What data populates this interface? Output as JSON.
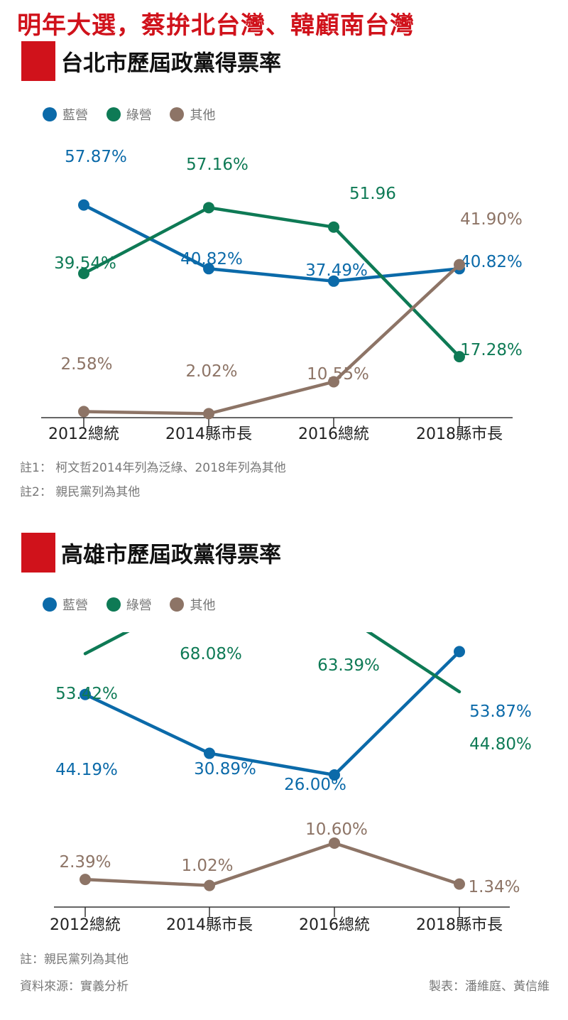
{
  "headline": "明年大選，蔡拚北台灣、韓顧南台灣",
  "colors": {
    "blue": "#0b6aa9",
    "green": "#0e7a55",
    "other": "#8d7466",
    "red": "#d0121b",
    "axis": "#333333",
    "note": "#777777"
  },
  "taipei": {
    "title": "台北市歷屆政黨得票率",
    "legend": [
      "藍營",
      "綠營",
      "其他"
    ],
    "notes": [
      "註1：  柯文哲2014年列為泛綠、2018年列為其他",
      "註2：  親民黨列為其他"
    ]
  },
  "kaohsiung": {
    "title": "高雄市歷屆政黨得票率",
    "legend": [
      "藍營",
      "綠營",
      "其他"
    ],
    "notes": [
      "註：親民黨列為其他",
      "資料來源：實義分析"
    ],
    "credit": "製表：潘維庭、黃信維"
  },
  "chart_data": [
    {
      "type": "line",
      "title": "台北市歷屆政黨得票率",
      "categories": [
        "2012總統",
        "2014縣市長",
        "2016總統",
        "2018縣市長"
      ],
      "series": [
        {
          "name": "藍營",
          "values": [
            57.87,
            40.82,
            37.49,
            40.82
          ],
          "labels": [
            "57.87%",
            "40.82%",
            "37.49%",
            "40.82%"
          ],
          "markers": true
        },
        {
          "name": "綠營",
          "values": [
            39.54,
            57.16,
            51.96,
            17.28
          ],
          "labels": [
            "39.54%",
            "57.16%",
            "51.96",
            "17.28%"
          ],
          "markers": true
        },
        {
          "name": "其他",
          "values": [
            2.58,
            2.02,
            10.55,
            41.9
          ],
          "labels": [
            "2.58%",
            "2.02%",
            "10.55%",
            "41.90%"
          ],
          "markers": true
        }
      ],
      "legend": "top-left",
      "grid": false
    },
    {
      "type": "line",
      "title": "高雄市歷屆政黨得票率",
      "categories": [
        "2012總統",
        "2014縣市長",
        "2016總統",
        "2018縣市長"
      ],
      "series": [
        {
          "name": "藍營",
          "values": [
            44.19,
            30.89,
            26.0,
            53.87
          ],
          "labels": [
            "44.19%",
            "30.89%",
            "26.00%",
            "53.87%"
          ],
          "markers": true
        },
        {
          "name": "綠營",
          "values": [
            53.42,
            68.08,
            63.39,
            44.8
          ],
          "labels": [
            "53.42%",
            "68.08%",
            "63.39%",
            "44.80%"
          ],
          "markers": false
        },
        {
          "name": "其他",
          "values": [
            2.39,
            1.02,
            10.6,
            1.34
          ],
          "labels": [
            "2.39%",
            "1.02%",
            "10.60%",
            "1.34%"
          ],
          "markers": true
        }
      ],
      "legend": "top-left",
      "grid": false
    }
  ]
}
